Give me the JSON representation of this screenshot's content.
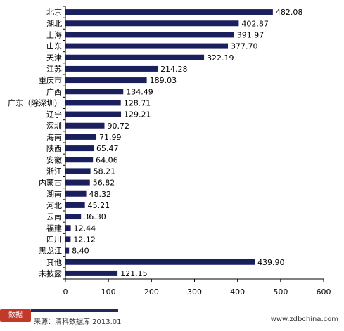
{
  "chart_data": {
    "type": "bar",
    "orientation": "horizontal",
    "categories": [
      "北京",
      "湖北",
      "上海",
      "山东",
      "天津",
      "江苏",
      "重庆市",
      "广西",
      "广东（除深圳）",
      "辽宁",
      "深圳",
      "海南",
      "陕西",
      "安徽",
      "浙江",
      "内蒙古",
      "湖南",
      "河北",
      "云南",
      "福建",
      "四川",
      "黑龙江",
      "其他",
      "未披露"
    ],
    "values": [
      482.08,
      402.87,
      391.97,
      377.7,
      322.19,
      214.28,
      189.03,
      134.49,
      128.71,
      129.21,
      90.72,
      71.99,
      65.47,
      64.06,
      58.21,
      56.82,
      48.32,
      45.21,
      36.3,
      12.44,
      12.12,
      8.4,
      439.9,
      121.15
    ],
    "value_labels": [
      "482.08",
      "402.87",
      "391.97",
      "377.70",
      "322.19",
      "214.28",
      "189.03",
      "134.49",
      "128.71",
      "129.21",
      "90.72",
      "71.99",
      "65.47",
      "64.06",
      "58.21",
      "56.82",
      "48.32",
      "45.21",
      "36.30",
      "12.44",
      "12.12",
      "8.40",
      "439.90",
      "121.15"
    ],
    "xlim": [
      0,
      600
    ],
    "xticks": [
      "0",
      "100",
      "200",
      "300",
      "400",
      "500",
      "600"
    ],
    "grid": false,
    "legend": "none",
    "bar_color": "#1a1f5e",
    "title": "",
    "xlabel": "",
    "ylabel": ""
  },
  "footer": {
    "logo_text": "数据",
    "source": "来源：清科数据库 2013.01",
    "site": "www.zdbchina.com"
  }
}
